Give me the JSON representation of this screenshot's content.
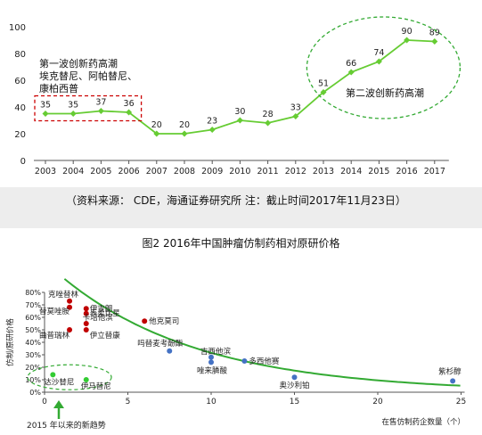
{
  "source_note": "（资料来源： CDE，海通证券研究所   注：截止时间2017年11月23日）",
  "figure2_title": "图2   2016年中国肿瘤仿制药相对原研价格",
  "chart_data": [
    {
      "type": "line",
      "title": "",
      "xlabel": "",
      "ylabel": "",
      "x": [
        "2003",
        "2004",
        "2005",
        "2006",
        "2007",
        "2008",
        "2009",
        "2010",
        "2011",
        "2012",
        "2013",
        "2014",
        "2015",
        "2016",
        "2017"
      ],
      "series": [
        {
          "values": [
            35,
            35,
            37,
            36,
            20,
            20,
            23,
            30,
            28,
            33,
            51,
            66,
            74,
            90,
            89
          ]
        }
      ],
      "ylim": [
        0,
        100
      ],
      "yticks": [
        0,
        20,
        40,
        60,
        80,
        100
      ],
      "grid": false,
      "line_color": "#66cc33",
      "annotations": {
        "wave1_title": "第一波创新药高潮",
        "wave1_line2": "埃克替尼、阿帕替尼、",
        "wave1_line3": "康柏西普",
        "wave2_title": "第二波创新药高潮"
      }
    },
    {
      "type": "scatter",
      "title": "",
      "xlabel": "在售仿制药企数量（个）",
      "ylabel": "仿制/原研价格",
      "xlim": [
        0,
        25
      ],
      "ylim": [
        0,
        80
      ],
      "xticks": [
        0,
        5,
        10,
        15,
        20,
        25
      ],
      "yticks": [
        "0%",
        "10%",
        "20%",
        "30%",
        "40%",
        "50%",
        "60%",
        "70%",
        "80%"
      ],
      "series": [
        {
          "color": "#c00000",
          "points": [
            {
              "x": 1.5,
              "y": 73,
              "label": "克唑替林"
            },
            {
              "x": 1.5,
              "y": 68,
              "label": "替莫唑胺"
            },
            {
              "x": 2.5,
              "y": 67,
              "label": "伊吉朗"
            },
            {
              "x": 2.5,
              "y": 63,
              "label": "表柔比星"
            },
            {
              "x": 6,
              "y": 57,
              "label": "他克莫司"
            },
            {
              "x": 2.5,
              "y": 55,
              "label": "卡培他滨"
            },
            {
              "x": 1.5,
              "y": 50,
              "label": "曲普瑞林"
            },
            {
              "x": 2.5,
              "y": 50,
              "label": "伊立替康"
            }
          ]
        },
        {
          "color": "#4472c4",
          "points": [
            {
              "x": 7.5,
              "y": 33,
              "label": "吗替麦考酚酯"
            },
            {
              "x": 10,
              "y": 28,
              "label": "吉西他滨"
            },
            {
              "x": 12,
              "y": 25,
              "label": "多西他赛"
            },
            {
              "x": 10,
              "y": 24,
              "label": "唑来膦酸"
            },
            {
              "x": 15,
              "y": 12,
              "label": "奥沙利铂"
            },
            {
              "x": 24.5,
              "y": 9,
              "label": "紫杉醇"
            }
          ]
        },
        {
          "color": "#33cc33",
          "points": [
            {
              "x": 0.5,
              "y": 14,
              "label": "达沙替尼"
            },
            {
              "x": 2.5,
              "y": 10,
              "label": "伊马替尼"
            }
          ]
        }
      ],
      "annotations": {
        "new_trend": "2015 年以来的新趋势"
      }
    }
  ]
}
